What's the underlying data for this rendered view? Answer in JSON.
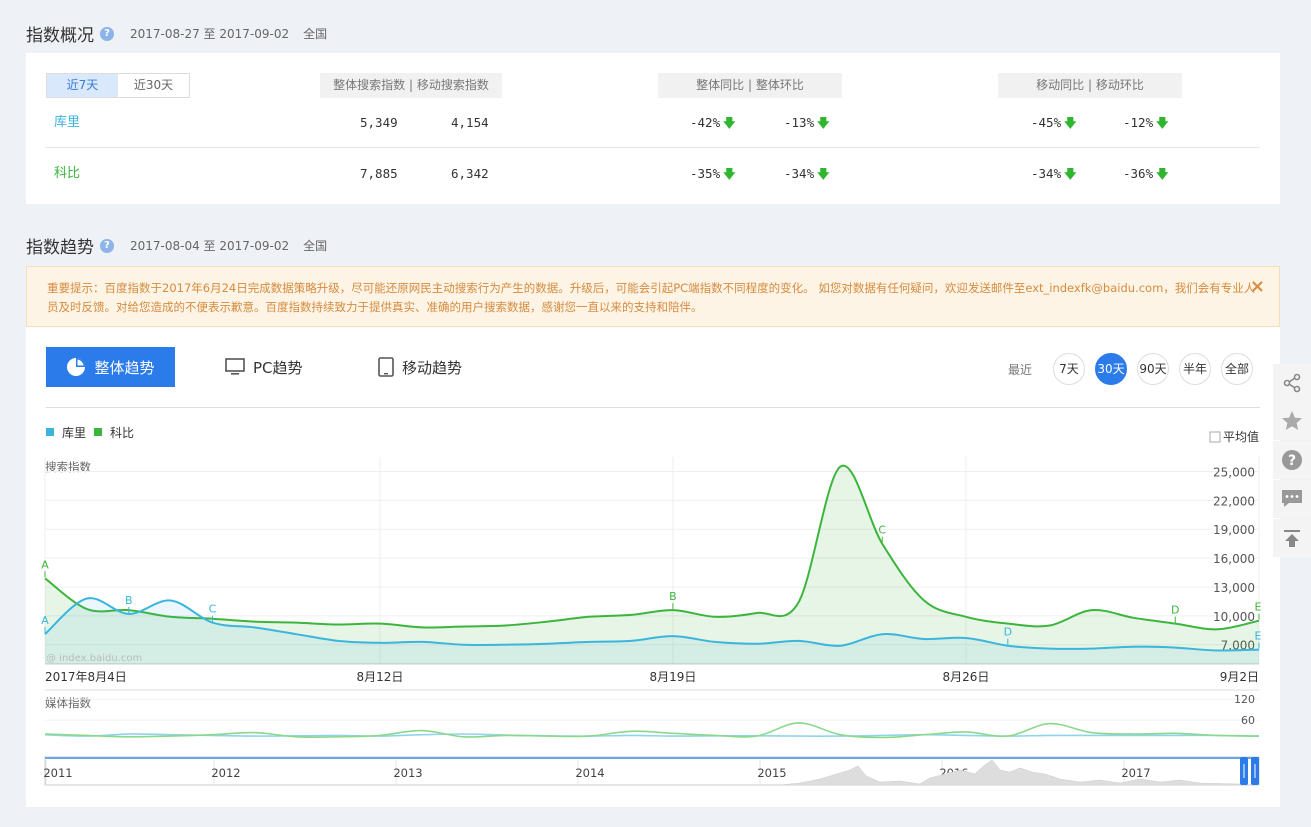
{
  "overview": {
    "title": "指数概况",
    "date": "2017-08-27 至 2017-09-02",
    "region": "全国",
    "tabs": [
      "近7天",
      "近30天"
    ],
    "headers": {
      "search": "整体搜索指数 | 移动搜索指数",
      "yoy": "整体同比 | 整体环比",
      "mob": "移动同比 | 移动环比"
    },
    "rows": [
      {
        "name": "库里",
        "color": "#3bb5dd",
        "overall": "5,349",
        "mobile": "4,154",
        "yoy": "-42%",
        "mom": "-13%",
        "m_yoy": "-45%",
        "m_mom": "-12%"
      },
      {
        "name": "科比",
        "color": "#3cb53c",
        "overall": "7,885",
        "mobile": "6,342",
        "yoy": "-35%",
        "mom": "-34%",
        "m_yoy": "-34%",
        "m_mom": "-36%"
      }
    ]
  },
  "trend": {
    "title": "指数趋势",
    "date": "2017-08-04 至 2017-09-02",
    "region": "全国",
    "notice": "重要提示：百度指数于2017年6月24日完成数据策略升级，尽可能还原网民主动搜索行为产生的数据。升级后，可能会引起PC端指数不同程度的变化。 如您对数据有任何疑问，欢迎发送邮件至ext_indexfk@baidu.com，我们会有专业人员及时反馈。对给您造成的不便表示歉意。百度指数持续致力于提供真实、准确的用户搜索数据，感谢您一直以来的支持和陪伴。",
    "notice_close": "×",
    "modes": [
      "整体趋势",
      "PC趋势",
      "移动趋势"
    ],
    "recent_label": "最近",
    "ranges": [
      "7天",
      "30天",
      "90天",
      "半年",
      "全部"
    ],
    "average_label": "平均值",
    "watermark": "@ index.baidu.com"
  },
  "colors": {
    "accent": "#2b7bea",
    "curry": "#3bb5dd",
    "kobe": "#3cb53c",
    "media_kobe": "#8ad88a",
    "media_curry": "#8fd4ec"
  },
  "icons": [
    "pie-chart-icon",
    "monitor-icon",
    "tablet-icon",
    "share-icon",
    "star-icon",
    "help-icon",
    "comment-icon",
    "back-to-top-icon",
    "close-icon",
    "arrow-down-icon"
  ],
  "chart_data": [
    {
      "type": "area",
      "title": "",
      "ylabel": "搜索指数",
      "x": [
        "2017-08-04",
        "2017-08-05",
        "2017-08-06",
        "2017-08-07",
        "2017-08-08",
        "2017-08-09",
        "2017-08-10",
        "2017-08-11",
        "2017-08-12",
        "2017-08-13",
        "2017-08-14",
        "2017-08-15",
        "2017-08-16",
        "2017-08-17",
        "2017-08-18",
        "2017-08-19",
        "2017-08-20",
        "2017-08-21",
        "2017-08-22",
        "2017-08-23",
        "2017-08-24",
        "2017-08-25",
        "2017-08-26",
        "2017-08-27",
        "2017-08-28",
        "2017-08-29",
        "2017-08-30",
        "2017-08-31",
        "2017-09-01",
        "2017-09-02"
      ],
      "xticks": [
        "2017年8月4日",
        "8月12日",
        "8月19日",
        "8月26日",
        "9月2日"
      ],
      "yticks": [
        "25,000",
        "22,000",
        "19,000",
        "16,000",
        "13,000",
        "10,000",
        "7,000"
      ],
      "ylim": [
        5000,
        26500
      ],
      "legend": [
        "库里",
        "科比"
      ],
      "legend_position": "top-left",
      "grid": true,
      "series": [
        {
          "name": "库里",
          "values": [
            8100,
            11800,
            10200,
            11600,
            9300,
            8800,
            8100,
            7400,
            7200,
            7300,
            7000,
            7000,
            7100,
            7300,
            7400,
            7900,
            7300,
            7100,
            7400,
            6900,
            8100,
            7600,
            7700,
            6900,
            6600,
            6600,
            6800,
            6700,
            6400,
            6500
          ],
          "markers": {
            "A": 0,
            "B": 2,
            "C": 4,
            "D": 23,
            "E": 29
          }
        },
        {
          "name": "科比",
          "values": [
            13900,
            10700,
            10600,
            9900,
            9700,
            9400,
            9300,
            9100,
            9200,
            8800,
            8900,
            9000,
            9400,
            9900,
            10100,
            10600,
            9900,
            10300,
            11400,
            25500,
            17500,
            11600,
            9900,
            9200,
            9000,
            10600,
            9800,
            9200,
            8600,
            9500
          ],
          "markers": {
            "A": 0,
            "B": 15,
            "C": 20,
            "D": 27,
            "E": 29
          }
        }
      ]
    },
    {
      "type": "line",
      "title": "",
      "ylabel": "媒体指数",
      "yticks": [
        "120",
        "60"
      ],
      "ylim": [
        0,
        135
      ],
      "legend": [
        "库里",
        "科比"
      ],
      "series": [
        {
          "name": "库里",
          "values": [
            18,
            14,
            20,
            18,
            16,
            14,
            15,
            16,
            14,
            18,
            20,
            17,
            15,
            14,
            16,
            14,
            15,
            15,
            14,
            14,
            16,
            18,
            16,
            14,
            16,
            16,
            16,
            16,
            16,
            14
          ]
        },
        {
          "name": "科比",
          "values": [
            20,
            16,
            12,
            14,
            18,
            24,
            12,
            12,
            16,
            30,
            12,
            16,
            14,
            14,
            28,
            22,
            16,
            14,
            52,
            18,
            10,
            18,
            26,
            14,
            50,
            24,
            20,
            22,
            16,
            14
          ]
        }
      ]
    },
    {
      "type": "area",
      "title": "",
      "xticks": [
        "2011",
        "2012",
        "2013",
        "2014",
        "2015",
        "2016",
        "2017"
      ]
    }
  ]
}
